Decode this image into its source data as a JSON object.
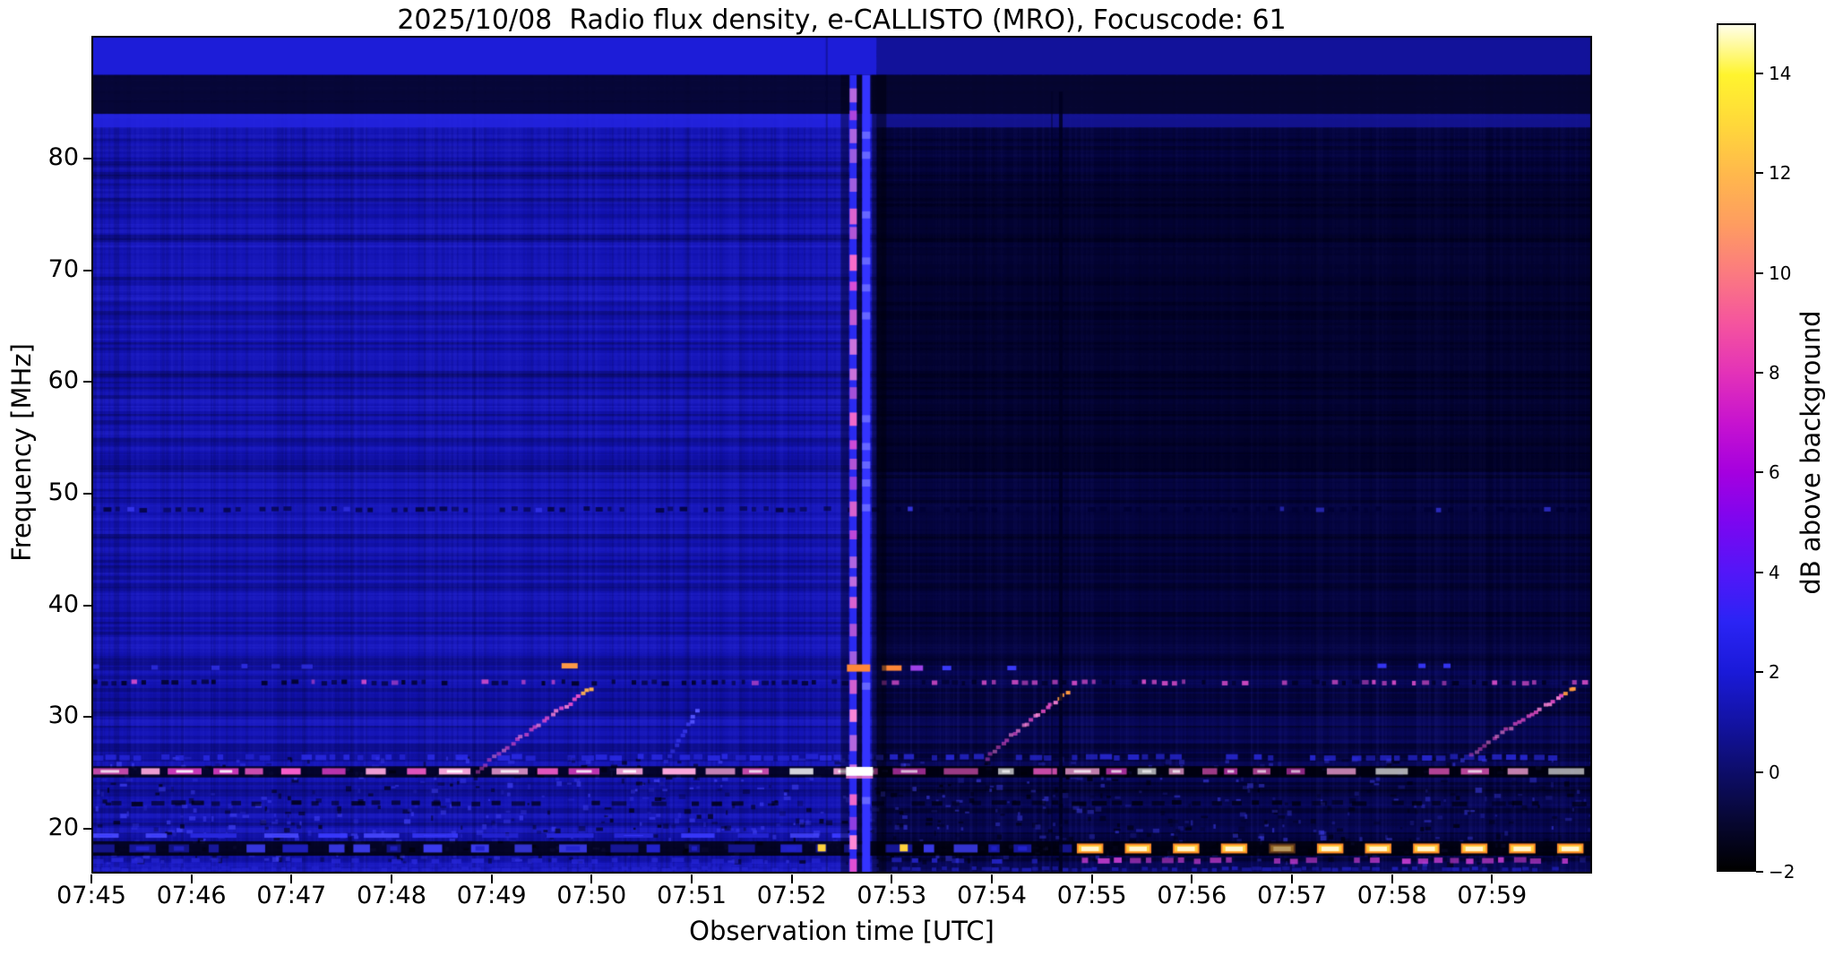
{
  "chart_data": {
    "type": "heatmap",
    "title": "2025/10/08  Radio flux density, e-CALLISTO (MRO), Focuscode: 61",
    "xlabel": "Observation time [UTC]",
    "ylabel": "Frequency [MHz]",
    "x_start": "07:45",
    "x_end": "08:00",
    "x_span_minutes": 15,
    "x_ticks": [
      {
        "m": 0,
        "label": "07:45"
      },
      {
        "m": 1,
        "label": "07:46"
      },
      {
        "m": 2,
        "label": "07:47"
      },
      {
        "m": 3,
        "label": "07:48"
      },
      {
        "m": 4,
        "label": "07:49"
      },
      {
        "m": 5,
        "label": "07:50"
      },
      {
        "m": 6,
        "label": "07:51"
      },
      {
        "m": 7,
        "label": "07:52"
      },
      {
        "m": 8,
        "label": "07:53"
      },
      {
        "m": 9,
        "label": "07:54"
      },
      {
        "m": 10,
        "label": "07:55"
      },
      {
        "m": 11,
        "label": "07:56"
      },
      {
        "m": 12,
        "label": "07:57"
      },
      {
        "m": 13,
        "label": "07:58"
      },
      {
        "m": 14,
        "label": "07:59"
      }
    ],
    "ylim": [
      16,
      91
    ],
    "y_ticks": [
      {
        "v": 80,
        "label": "80"
      },
      {
        "v": 70,
        "label": "70"
      },
      {
        "v": 60,
        "label": "60"
      },
      {
        "v": 50,
        "label": "50"
      },
      {
        "v": 40,
        "label": "40"
      },
      {
        "v": 30,
        "label": "30"
      },
      {
        "v": 20,
        "label": "20"
      }
    ],
    "grid": false,
    "colorbar": {
      "label": "dB above background",
      "vmin": -2,
      "vmax": 15,
      "ticks": [
        {
          "v": 14,
          "label": "14"
        },
        {
          "v": 12,
          "label": "12"
        },
        {
          "v": 10,
          "label": "10"
        },
        {
          "v": 8,
          "label": "8"
        },
        {
          "v": 6,
          "label": "6"
        },
        {
          "v": 4,
          "label": "4"
        },
        {
          "v": 2,
          "label": "2"
        },
        {
          "v": 0,
          "label": "0"
        },
        {
          "v": -2,
          "label": "−2"
        }
      ],
      "stops": [
        {
          "v": -2,
          "c": "#000000"
        },
        {
          "v": -1,
          "c": "#070733"
        },
        {
          "v": 0,
          "c": "#0d0d6b"
        },
        {
          "v": 1,
          "c": "#1313a5"
        },
        {
          "v": 2,
          "c": "#1a1ad9"
        },
        {
          "v": 3,
          "c": "#2b24f5"
        },
        {
          "v": 4,
          "c": "#5316f8"
        },
        {
          "v": 5,
          "c": "#7c06f0"
        },
        {
          "v": 6,
          "c": "#a500df"
        },
        {
          "v": 7,
          "c": "#c713cf"
        },
        {
          "v": 8,
          "c": "#e332b8"
        },
        {
          "v": 9,
          "c": "#f5549e"
        },
        {
          "v": 10,
          "c": "#fb7a80"
        },
        {
          "v": 11,
          "c": "#fe9d60"
        },
        {
          "v": 12,
          "c": "#ffb84c"
        },
        {
          "v": 13,
          "c": "#ffd83a"
        },
        {
          "v": 14,
          "c": "#fff42e"
        },
        {
          "v": 15,
          "c": "#fffee8"
        }
      ]
    },
    "background": {
      "left_base_color": "#1212b0",
      "right_base_color": "#060650",
      "boundary_minute": 7.85,
      "left_level_db": 1.5,
      "right_level_db": 0.2
    },
    "events": [
      {
        "time_utc": "07:52:35-07:52:50",
        "type": "broadband burst / bright vertical band",
        "freq_mhz": [
          16,
          87
        ],
        "peak_db": 9
      },
      {
        "time_utc": "07:48:50-07:50:00",
        "type": "slow drifting burst (rising)",
        "freq_mhz": [
          25.0,
          32.6
        ],
        "peak_db": 11
      },
      {
        "time_utc": "07:53:57-07:54:45",
        "type": "slow drifting burst (rising)",
        "freq_mhz": [
          26.3,
          32.2
        ],
        "peak_db": 9
      },
      {
        "time_utc": "07:58:48-07:59:49",
        "type": "slow drifting burst (rising)",
        "freq_mhz": [
          26.6,
          32.6
        ],
        "peak_db": 12
      },
      {
        "time_utc": "07:54:41",
        "type": "dark vertical data gap",
        "freq_mhz": [
          16,
          86
        ]
      },
      {
        "freq_mhz": 25.2,
        "type": "strong intermittent horizontal interference line",
        "time_utc": "07:45-08:00",
        "peak_db": 13
      },
      {
        "freq_mhz": 33.1,
        "type": "dotted horizontal interference line",
        "time_utc": "07:45-08:00",
        "peak_db": 7
      },
      {
        "freq_mhz": 48.6,
        "type": "dotted horizontal interference line",
        "time_utc": "07:45-08:00",
        "peak_db": 4
      },
      {
        "freq_mhz": 18.3,
        "type": "very strong periodic interference blobs",
        "time_utc": "07:55-08:00",
        "peak_db": 15
      },
      {
        "type": "background drop after burst",
        "time_utc": "07:53-08:00",
        "delta_db": -1.3
      }
    ],
    "features": [
      {
        "kind": "hband",
        "t": [
          0,
          7.85
        ],
        "f": [
          87.5,
          91.5
        ],
        "color": "#1d1dd8",
        "alpha": 1
      },
      {
        "kind": "hband",
        "t": [
          7.85,
          15
        ],
        "f": [
          87.5,
          91.5
        ],
        "color": "#12129a",
        "alpha": 1
      },
      {
        "kind": "hband",
        "t": [
          0,
          15
        ],
        "f": [
          84.0,
          87.5
        ],
        "color": "#05052e",
        "alpha": 0.92
      },
      {
        "kind": "hband",
        "t": [
          0,
          7.85
        ],
        "f": [
          82.8,
          84.0
        ],
        "color": "#2424e4",
        "alpha": 0.85
      },
      {
        "kind": "hband",
        "t": [
          7.85,
          15
        ],
        "f": [
          82.8,
          84.0
        ],
        "color": "#15159c",
        "alpha": 0.85
      },
      {
        "kind": "hband",
        "t": [
          7.85,
          15
        ],
        "f": [
          35,
          82.8
        ],
        "color": "#000018",
        "alpha": 0.38
      },
      {
        "kind": "hband",
        "t": [
          7.85,
          15
        ],
        "f": [
          52,
          78
        ],
        "color": "#000010",
        "alpha": 0.3
      },
      {
        "kind": "dots",
        "f": 48.6,
        "t": [
          0,
          15
        ],
        "period": 0.12,
        "w": 7,
        "h": 5,
        "color": "#000030",
        "alpha": 0.8,
        "bright": "#4040ff",
        "bp_left": 0.15,
        "bp_right": 0.1
      },
      {
        "kind": "dots",
        "f": 33.1,
        "t": [
          0,
          15
        ],
        "period": 0.1,
        "w": 6,
        "h": 5,
        "color": "#000020",
        "alpha": 0.9,
        "bright": "#e050cc",
        "bp_left": 0.14,
        "bp_right": 0.4
      },
      {
        "kind": "dots",
        "f": 34.5,
        "t": [
          0,
          2.2
        ],
        "period": 0.3,
        "w": 9,
        "h": 5,
        "color": "#3333ee",
        "alpha": 0.9
      },
      {
        "kind": "dots",
        "f": 26.4,
        "t": [
          0,
          15
        ],
        "period": 0.14,
        "w": 10,
        "h": 6,
        "color": "#2e2ef0",
        "alpha": 0.8
      },
      {
        "kind": "dots",
        "f": 22.3,
        "t": [
          0,
          15
        ],
        "period": 0.2,
        "w": 12,
        "h": 5,
        "color": "#000010",
        "alpha": 0.85
      },
      {
        "kind": "dots",
        "f": 16.4,
        "t": [
          0,
          15
        ],
        "period": 0.1,
        "w": 8,
        "h": 4,
        "color": "#2828d8",
        "alpha": 0.7
      },
      {
        "kind": "hband",
        "t": [
          0,
          15
        ],
        "f": [
          24.6,
          25.6
        ],
        "color": "#000006",
        "alpha": 0.75
      },
      {
        "kind": "brightrow",
        "f": 25.15,
        "t": [
          0,
          15
        ],
        "h": 7,
        "seg": [
          0.12,
          0.38
        ],
        "gap": [
          0.06,
          0.22
        ],
        "colors": [
          "#ffffff",
          "#ffa8e0",
          "#ff5fd0",
          "#e03ec8"
        ],
        "fade_after": 7.9,
        "fade": 0.8
      },
      {
        "kind": "brightrow",
        "f": 19.4,
        "t": [
          0,
          7.6
        ],
        "h": 5,
        "seg": [
          0.2,
          0.5
        ],
        "gap": [
          0.1,
          0.3
        ],
        "colors": [
          "#3a3aff",
          "#2828dd",
          "#4848ff"
        ],
        "fade_after": 15,
        "fade": 1
      },
      {
        "kind": "hband",
        "t": [
          0,
          15
        ],
        "f": [
          17.6,
          18.9
        ],
        "color": "#000004",
        "alpha": 0.8
      },
      {
        "kind": "brightrow",
        "f": 18.25,
        "t": [
          0,
          9.8
        ],
        "h": 9,
        "seg": [
          0.1,
          0.3
        ],
        "gap": [
          0.08,
          0.3
        ],
        "colors": [
          "#2222cc",
          "#3c3cf2",
          "#1818a0"
        ],
        "fade_after": 15,
        "fade": 1
      },
      {
        "kind": "hotrow",
        "f": 18.25,
        "t": [
          9.85,
          14.98
        ],
        "h": 11,
        "period": 0.48,
        "duty": 0.55,
        "core": "#fff6cf",
        "mid": "#ffcf3e",
        "edge": "#ff8c2a"
      },
      {
        "kind": "dots",
        "f": 17.15,
        "t": [
          9.9,
          15
        ],
        "period": 0.16,
        "w": 10,
        "h": 6,
        "color": "#cf3fd8",
        "alpha": 0.9
      },
      {
        "kind": "dots",
        "f": 17.15,
        "t": [
          0,
          9.9
        ],
        "period": 0.2,
        "w": 10,
        "h": 5,
        "color": "#2a2ae0",
        "alpha": 0.8
      },
      {
        "kind": "dot",
        "t": 7.3,
        "f": 18.3,
        "w": 9,
        "h": 8,
        "color": "#ffd23c"
      },
      {
        "kind": "dot",
        "t": 8.12,
        "f": 18.3,
        "w": 9,
        "h": 8,
        "color": "#ffd23c"
      },
      {
        "kind": "dot",
        "t": 4.78,
        "f": 34.6,
        "w": 18,
        "h": 6,
        "color": "#ff9a46"
      },
      {
        "kind": "dot",
        "t": 8.0,
        "f": 34.4,
        "w": 22,
        "h": 6,
        "color": "#ff8838"
      },
      {
        "kind": "dot",
        "t": 8.25,
        "f": 34.4,
        "w": 14,
        "h": 6,
        "color": "#a040e8"
      },
      {
        "kind": "dot",
        "t": 8.55,
        "f": 34.4,
        "w": 10,
        "h": 5,
        "color": "#3a3af8"
      },
      {
        "kind": "dot",
        "t": 9.2,
        "f": 34.4,
        "w": 10,
        "h": 5,
        "color": "#3a3af8"
      },
      {
        "kind": "dot",
        "t": 12.9,
        "f": 34.6,
        "w": 10,
        "h": 5,
        "color": "#3434f0"
      },
      {
        "kind": "dot",
        "t": 13.3,
        "f": 34.6,
        "w": 8,
        "h": 5,
        "color": "#3434f0"
      },
      {
        "kind": "dot",
        "t": 13.55,
        "f": 34.6,
        "w": 8,
        "h": 5,
        "color": "#3434f0"
      },
      {
        "kind": "drift",
        "t": [
          3.85,
          5.0
        ],
        "f": [
          25.0,
          32.6
        ],
        "color": "#f050cc",
        "alt": "#ff85d8",
        "hot": "#ffb050",
        "n": 26
      },
      {
        "kind": "drift",
        "t": [
          5.75,
          6.05
        ],
        "f": [
          26.0,
          30.5
        ],
        "color": "#3a3af0",
        "alt": "#4848ff",
        "hot": "#5555ff",
        "n": 10
      },
      {
        "kind": "drift",
        "t": [
          8.95,
          9.75
        ],
        "f": [
          26.3,
          32.2
        ],
        "color": "#f050cc",
        "alt": "#ff85d8",
        "hot": "#ff9a40",
        "n": 20
      },
      {
        "kind": "drift",
        "t": [
          13.8,
          14.82
        ],
        "f": [
          26.6,
          32.6
        ],
        "color": "#f050cc",
        "alt": "#ff85d8",
        "hot": "#ff9a40",
        "n": 24
      },
      {
        "kind": "burst",
        "t": [
          7.57,
          7.84
        ],
        "f": [
          16,
          87.5
        ],
        "col1": "#2a2af0",
        "col2": "#3434ff",
        "blob_colors": [
          "#ff6ec8",
          "#e24fd4",
          "#ff89d6"
        ],
        "cross25": "#ffffff",
        "cross34": "#ff8838"
      },
      {
        "kind": "vline",
        "t": 9.69,
        "w": 4,
        "color": "#000020",
        "alpha": 0.85,
        "f": [
          16,
          86
        ]
      },
      {
        "kind": "vline",
        "t": 9.6,
        "w": 2,
        "color": "#000020",
        "alpha": 0.4,
        "f": [
          16,
          86
        ]
      },
      {
        "kind": "vline",
        "t": 7.35,
        "w": 2,
        "color": "#000020",
        "alpha": 0.3,
        "f": [
          16,
          91
        ]
      }
    ]
  }
}
